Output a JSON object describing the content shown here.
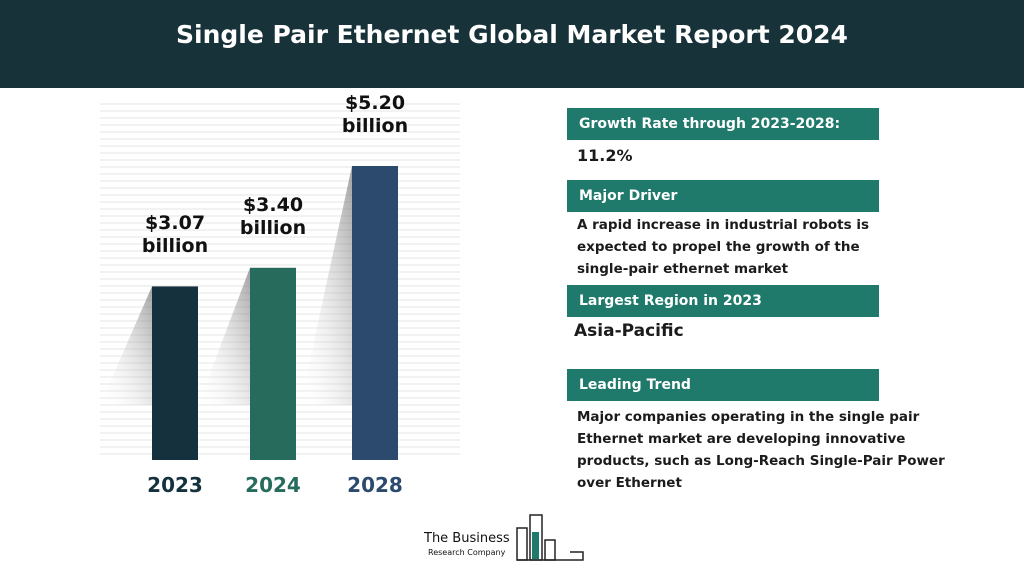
{
  "chart_data": {
    "type": "bar",
    "title": "Single Pair Ethernet Global Market Report 2024",
    "categories": [
      "2023",
      "2024",
      "2028"
    ],
    "values": [
      3.07,
      3.4,
      5.2
    ],
    "value_labels": [
      "$3.07 billion",
      "$3.40 billion",
      "$5.20 billion"
    ],
    "colors": [
      "#15313d",
      "#276b5d",
      "#2c4a6d"
    ]
  },
  "panel": [
    {
      "heading": "Growth Rate through 2023-2028:",
      "text": "11.2%"
    },
    {
      "heading": "Major Driver",
      "text": "A rapid increase in industrial robots is expected to propel the growth of the single-pair ethernet market"
    },
    {
      "heading": "Largest Region in 2023",
      "text": "Asia-Pacific"
    },
    {
      "heading": "Leading Trend",
      "text": "Major companies operating in the single pair Ethernet market are developing innovative products, such as Long-Reach Single-Pair Power over Ethernet"
    }
  ],
  "logo": {
    "name": "The Business",
    "sub": "Research Company"
  }
}
